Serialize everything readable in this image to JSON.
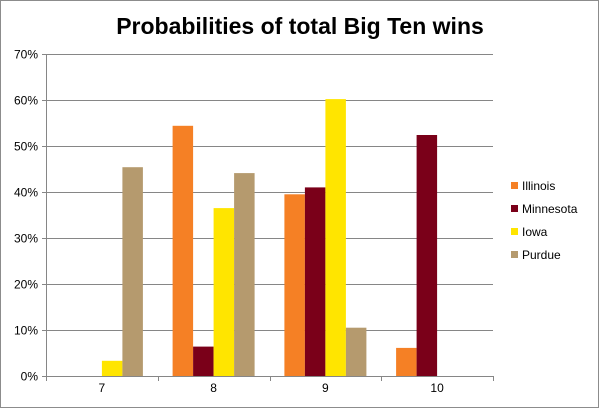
{
  "chart_data": {
    "type": "bar",
    "title": "Probabilities of total Big Ten wins",
    "xlabel": "",
    "ylabel": "",
    "categories": [
      "7",
      "8",
      "9",
      "10"
    ],
    "ylim": [
      0,
      70
    ],
    "yticks": [
      0,
      10,
      20,
      30,
      40,
      50,
      60,
      70
    ],
    "ytick_labels": [
      "0%",
      "10%",
      "20%",
      "30%",
      "40%",
      "50%",
      "60%",
      "70%"
    ],
    "grid": true,
    "legend_position": "right",
    "series": [
      {
        "name": "Illinois",
        "color": "#F58025",
        "values": [
          0,
          54.4,
          39.5,
          6.1
        ]
      },
      {
        "name": "Minnesota",
        "color": "#7A0019",
        "values": [
          0,
          6.4,
          41.0,
          52.4
        ]
      },
      {
        "name": "Iowa",
        "color": "#FFE500",
        "values": [
          3.3,
          36.5,
          60.2,
          0
        ]
      },
      {
        "name": "Purdue",
        "color": "#B59A6E",
        "values": [
          45.4,
          44.1,
          10.5,
          0
        ]
      }
    ]
  }
}
